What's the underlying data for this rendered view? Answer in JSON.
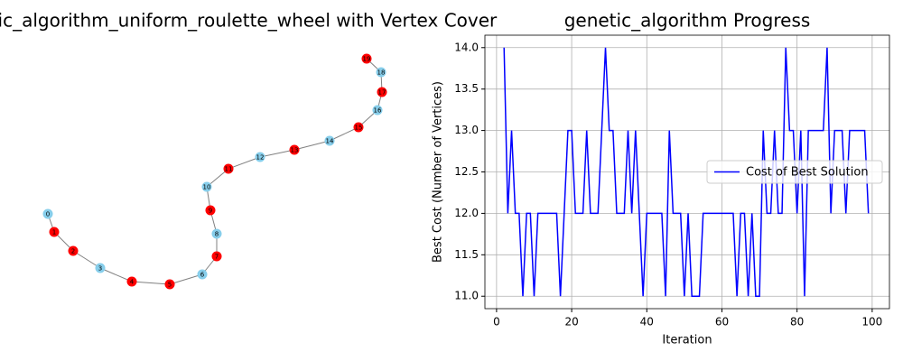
{
  "chart_data": [
    {
      "type": "network",
      "title": "genetic_algorithm_uniform_roulette_wheel with Vertex Cover",
      "nodes": [
        "0",
        "1",
        "2",
        "3",
        "4",
        "5",
        "6",
        "7",
        "8",
        "9",
        "10",
        "11",
        "12",
        "13",
        "14",
        "15",
        "16",
        "17",
        "18",
        "19"
      ],
      "node_colors": [
        "#87ceeb",
        "#ff0000",
        "#ff0000",
        "#87ceeb",
        "#ff0000",
        "#ff0000",
        "#87ceeb",
        "#ff0000",
        "#87ceeb",
        "#ff0000",
        "#87ceeb",
        "#ff0000",
        "#87ceeb",
        "#ff0000",
        "#87ceeb",
        "#ff0000",
        "#87ceeb",
        "#ff0000",
        "#87ceeb",
        "#ff0000"
      ],
      "edges": [
        [
          0,
          1
        ],
        [
          1,
          2
        ],
        [
          2,
          3
        ],
        [
          3,
          4
        ],
        [
          4,
          5
        ],
        [
          5,
          6
        ],
        [
          6,
          7
        ],
        [
          7,
          8
        ],
        [
          8,
          9
        ],
        [
          9,
          10
        ],
        [
          10,
          11
        ],
        [
          11,
          12
        ],
        [
          12,
          13
        ],
        [
          13,
          14
        ],
        [
          14,
          15
        ],
        [
          15,
          16
        ],
        [
          16,
          17
        ],
        [
          17,
          18
        ],
        [
          18,
          19
        ]
      ],
      "edge_color": "#808080"
    },
    {
      "type": "line",
      "title": "genetic_algorithm Progress",
      "x_label": "Iteration",
      "y_label": "Best Cost (Number of Vertices)",
      "x": [
        2,
        3,
        4,
        5,
        6,
        7,
        8,
        9,
        10,
        11,
        12,
        13,
        14,
        15,
        16,
        17,
        18,
        19,
        20,
        21,
        22,
        23,
        24,
        25,
        26,
        27,
        28,
        29,
        30,
        31,
        32,
        33,
        34,
        35,
        36,
        37,
        38,
        39,
        40,
        41,
        42,
        43,
        44,
        45,
        46,
        47,
        48,
        49,
        50,
        51,
        52,
        53,
        54,
        55,
        56,
        57,
        58,
        59,
        60,
        61,
        62,
        63,
        64,
        65,
        66,
        67,
        68,
        69,
        70,
        71,
        72,
        73,
        74,
        75,
        76,
        77,
        78,
        79,
        80,
        81,
        82,
        83,
        84,
        85,
        86,
        87,
        88,
        89,
        90,
        91,
        92,
        93,
        94,
        95,
        96,
        97,
        98,
        99
      ],
      "series": [
        {
          "name": "Cost of Best Solution",
          "color": "#0000ff",
          "values": [
            14,
            12,
            13,
            12,
            12,
            11,
            12,
            12,
            11,
            12,
            12,
            12,
            12,
            12,
            12,
            11,
            12,
            13,
            13,
            12,
            12,
            12,
            13,
            12,
            12,
            12,
            13,
            14,
            13,
            13,
            12,
            12,
            12,
            13,
            12,
            13,
            12,
            11,
            12,
            12,
            12,
            12,
            12,
            11,
            13,
            12,
            12,
            12,
            11,
            12,
            11,
            11,
            11,
            12,
            12,
            12,
            12,
            12,
            12,
            12,
            12,
            12,
            11,
            12,
            12,
            11,
            12,
            11,
            11,
            13,
            12,
            12,
            13,
            12,
            12,
            14,
            13,
            13,
            12,
            13,
            11,
            13,
            13,
            13,
            13,
            13,
            14,
            12,
            13,
            13,
            13,
            12,
            13,
            13,
            13,
            13,
            13,
            12
          ]
        }
      ],
      "xlim": [
        -3.1,
        104.6
      ],
      "ylim": [
        10.85,
        14.15
      ],
      "xticks": [
        0,
        20,
        40,
        60,
        80,
        100
      ],
      "yticks": [
        {
          "value": 11,
          "label": "11.0"
        },
        {
          "value": 11.5,
          "label": "11.5"
        },
        {
          "value": 12,
          "label": "12.0"
        },
        {
          "value": 12.5,
          "label": "12.5"
        },
        {
          "value": 13,
          "label": "13.0"
        },
        {
          "value": 13.5,
          "label": "13.5"
        },
        {
          "value": 14,
          "label": "14.0"
        }
      ],
      "grid": true,
      "legend": "center right"
    }
  ]
}
